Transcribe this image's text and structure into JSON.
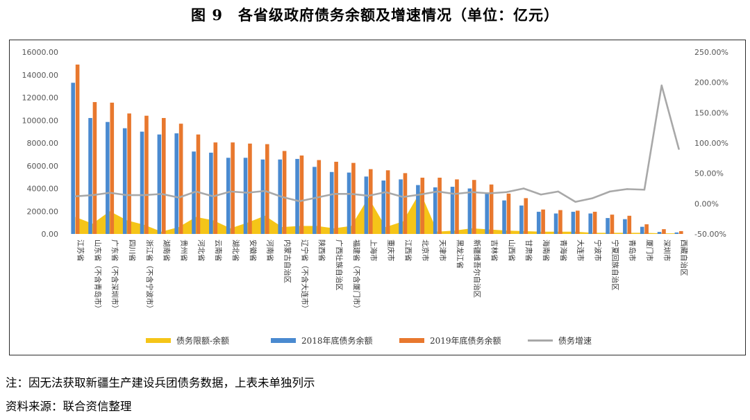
{
  "title": "图 9　各省级政府债务余额及增速情况（单位：亿元）",
  "notes": {
    "note": "注：因无法获取新疆生产建设兵团债务数据，上表未单独列示",
    "source": "资料来源：联合资信整理"
  },
  "colors": {
    "limit": "#f5c518",
    "debt2018": "#4a8ad0",
    "debt2019": "#e8782e",
    "growth": "#a8a8a8"
  },
  "chart_data": {
    "type": "bar",
    "categories": [
      "江苏省",
      "山东省（不含青岛市）",
      "广东省（不含深圳市）",
      "四川省",
      "浙江省（不含宁波市）",
      "湖南省",
      "贵州省",
      "河北省",
      "云南省",
      "湖北省",
      "安徽省",
      "河南省",
      "内蒙古自治区",
      "辽宁省（不含大连市）",
      "陕西省",
      "广西壮族自治区",
      "福建省（不含厦门市）",
      "上海市",
      "重庆市",
      "江西省",
      "北京市",
      "天津市",
      "黑龙江省",
      "新疆维吾尔自治区",
      "吉林省",
      "山西省",
      "甘肃省",
      "海南省",
      "青海省",
      "大连市",
      "宁波市",
      "宁夏回族自治区",
      "青岛市",
      "厦门市",
      "深圳市",
      "西藏自治区"
    ],
    "series": [
      {
        "name": "债务限额-余额",
        "type": "area",
        "axis": "left",
        "values": [
          1500,
          900,
          2000,
          1200,
          800,
          200,
          600,
          1500,
          1200,
          500,
          1000,
          1600,
          600,
          700,
          700,
          500,
          700,
          3200,
          600,
          1100,
          3700,
          200,
          300,
          500,
          400,
          300,
          250,
          200,
          200,
          200,
          100,
          100,
          100,
          100,
          50,
          50
        ]
      },
      {
        "name": "2018年底债务余额",
        "type": "bar",
        "axis": "left",
        "values": [
          13300,
          10200,
          9850,
          9300,
          9000,
          8750,
          8850,
          7250,
          7150,
          6700,
          6700,
          6550,
          6550,
          6600,
          5900,
          5450,
          5400,
          5050,
          4700,
          4800,
          4300,
          4100,
          4150,
          4000,
          3650,
          2950,
          2500,
          1950,
          1800,
          1950,
          1800,
          1400,
          1300,
          630,
          180,
          130
        ]
      },
      {
        "name": "2019年底债务余额",
        "type": "bar",
        "axis": "left",
        "values": [
          14900,
          11600,
          11550,
          10600,
          10400,
          10200,
          9700,
          8750,
          8050,
          8050,
          7950,
          7900,
          7300,
          6900,
          6500,
          6350,
          6250,
          5700,
          5600,
          5350,
          4950,
          4950,
          4800,
          4750,
          4350,
          3550,
          3150,
          2150,
          2100,
          2050,
          1950,
          1700,
          1600,
          850,
          420,
          250
        ]
      },
      {
        "name": "债务增速",
        "type": "line",
        "axis": "right",
        "values": [
          12,
          14,
          18,
          14,
          14,
          16,
          10,
          20,
          12,
          20,
          18,
          21,
          11,
          4,
          10,
          16,
          16,
          13,
          19,
          11,
          15,
          20,
          16,
          19,
          17,
          19,
          25,
          15,
          20,
          3,
          9,
          20,
          24,
          23,
          195,
          90
        ]
      }
    ],
    "ylim_left": [
      0,
      16000
    ],
    "yticks_left": [
      "0.00",
      "2000.00",
      "4000.00",
      "6000.00",
      "8000.00",
      "10000.00",
      "12000.00",
      "14000.00",
      "16000.00"
    ],
    "ylim_right": [
      -50,
      250
    ],
    "yticks_right": [
      "-50.00%",
      "0.00%",
      "50.00%",
      "100.00%",
      "150.00%",
      "200.00%",
      "250.00%"
    ],
    "legend_position": "bottom",
    "grid": false
  }
}
